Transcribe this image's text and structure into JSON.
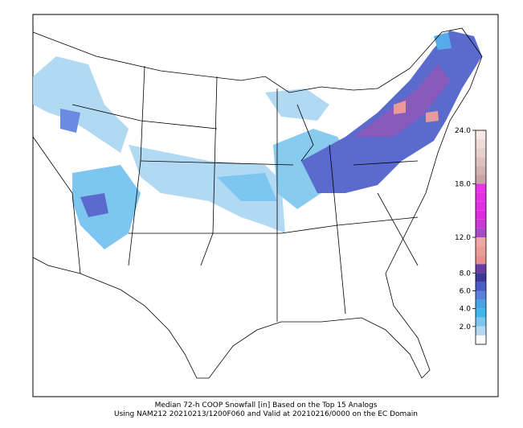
{
  "caption": [
    "Median 72-h COOP Snowfall [in] Based on the Top 15 Analogs",
    "Using NAM212 20210213/1200F060 and Valid at 20210216/0000 on the EC Domain"
  ],
  "colorbar": {
    "lim": [
      0,
      24
    ],
    "ticks": [
      {
        "value": 2,
        "label": "2.0"
      },
      {
        "value": 4,
        "label": "4.0"
      },
      {
        "value": 6,
        "label": "6.0"
      },
      {
        "value": 8,
        "label": "8.0"
      },
      {
        "value": 12,
        "label": "12.0"
      },
      {
        "value": 18,
        "label": "18.0"
      },
      {
        "value": 24,
        "label": "24.0"
      }
    ],
    "bounds": [
      0,
      1,
      2,
      3,
      4,
      5,
      6,
      7,
      8,
      9,
      10,
      11,
      12,
      13,
      14,
      15,
      16,
      17,
      18,
      19,
      20,
      21,
      22,
      23,
      24
    ],
    "colors": [
      "#ffffff",
      "#b3d9f2",
      "#7cc6ee",
      "#3fb6ee",
      "#45a3e6",
      "#5a7fdc",
      "#4a5bc8",
      "#3b3a9a",
      "#6a3e9c",
      "#e8908e",
      "#ec9c98",
      "#eea7a3",
      "#a64cc4",
      "#cc38d6",
      "#dc2ee0",
      "#e22ee2",
      "#e630e4",
      "#e836e6",
      "#c9a3a5",
      "#d3b2b3",
      "#ddc1c1",
      "#e6cfcd",
      "#efdcd9",
      "#f7e9e6"
    ]
  }
}
